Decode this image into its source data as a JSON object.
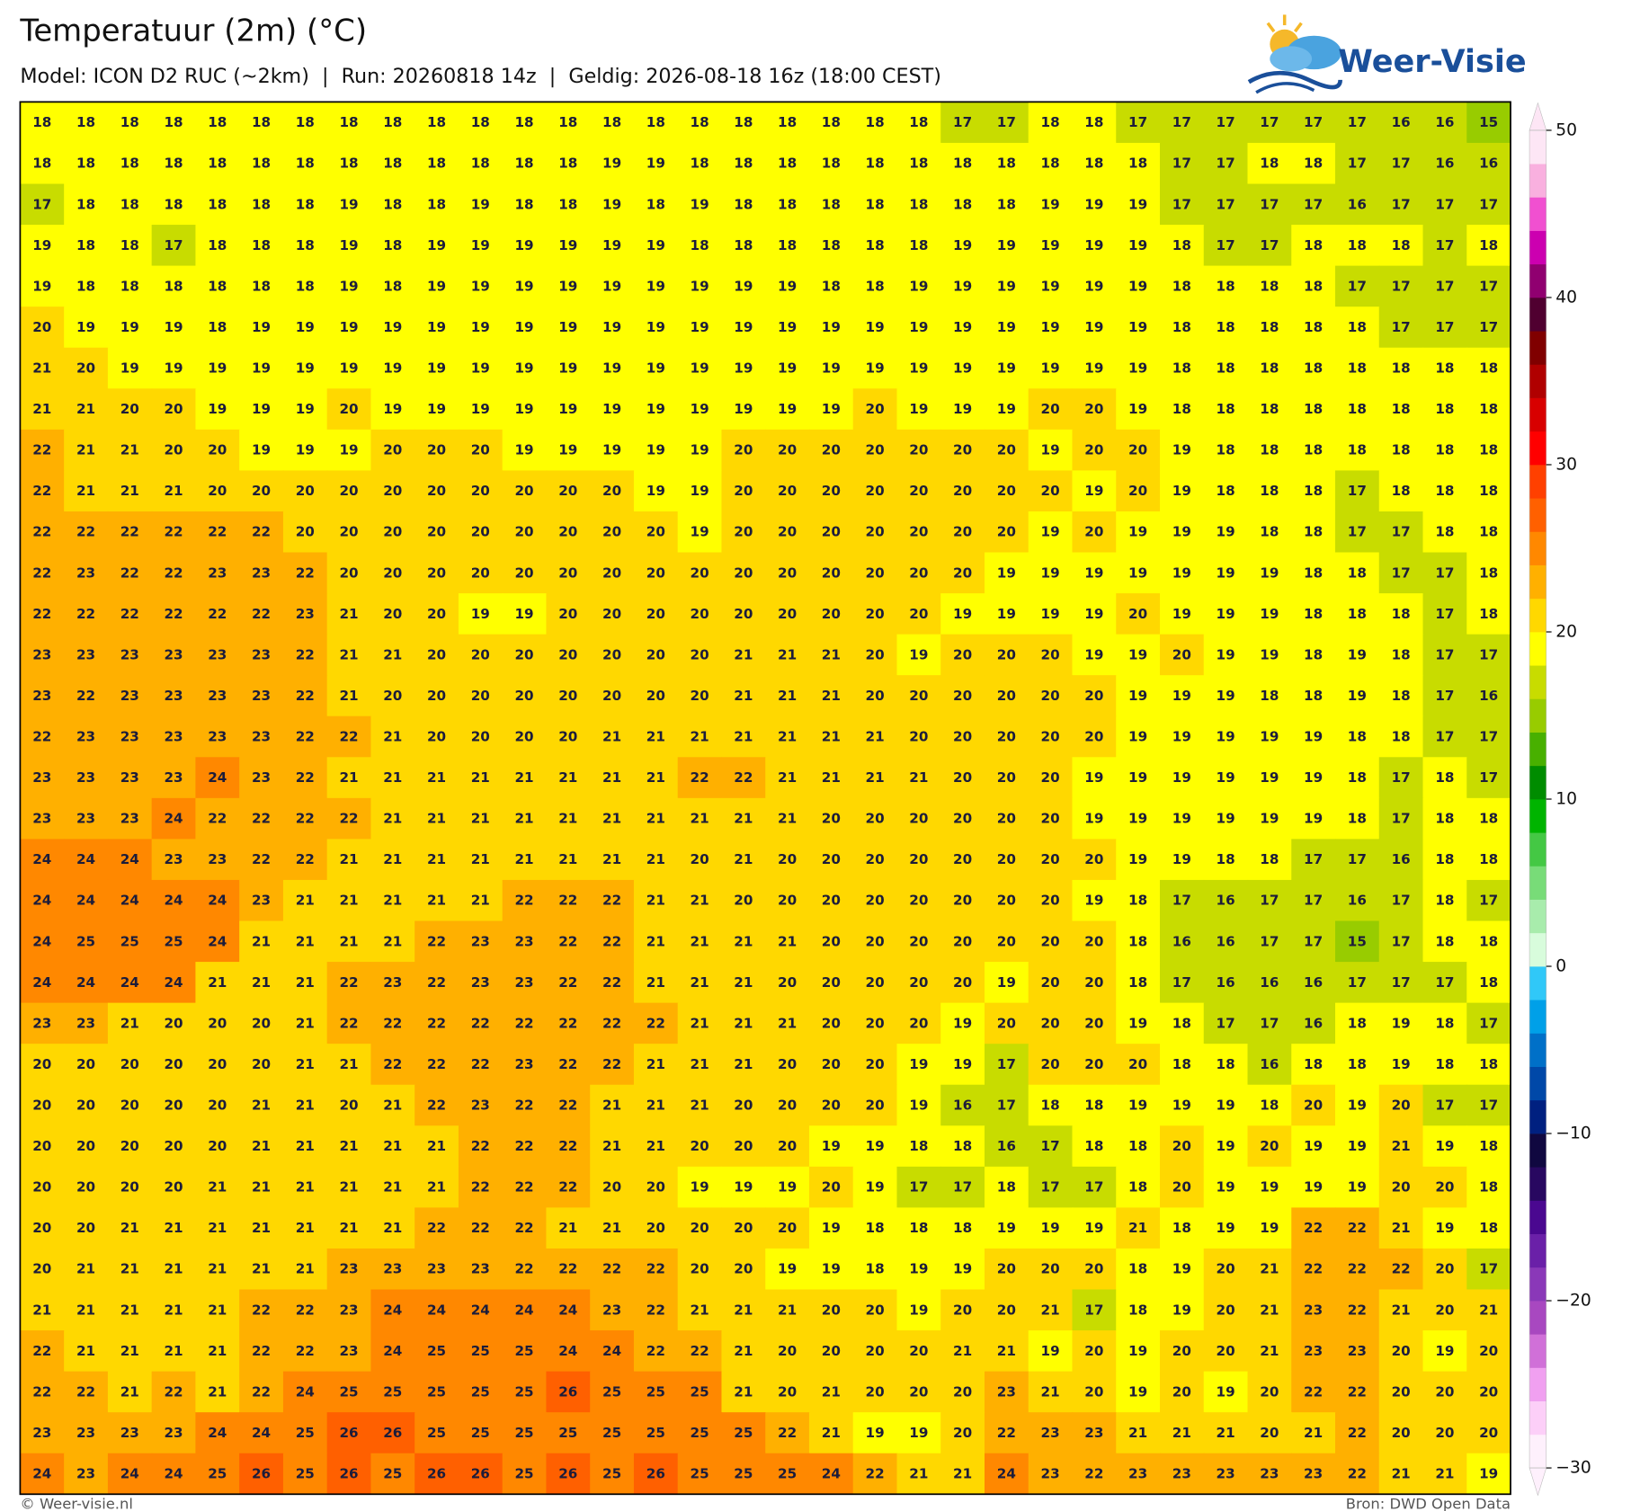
{
  "chart_data": {
    "type": "grid_map",
    "title": "Temperatuur (2m) (°C)",
    "subtitle": "Model: ICON D2 RUC (~2km)  |  Run: 20260818 14z  |  Geldig: 2026-08-18 16z (18:00 CEST)",
    "values": [
      [
        18,
        18,
        18,
        18,
        18,
        18,
        18,
        18,
        18,
        18,
        18,
        18,
        18,
        18,
        18,
        18,
        18,
        18,
        18,
        18,
        18,
        17,
        17,
        18,
        18,
        17,
        17,
        17,
        17,
        17,
        17,
        16,
        16,
        15
      ],
      [
        18,
        18,
        18,
        18,
        18,
        18,
        18,
        18,
        18,
        18,
        18,
        18,
        18,
        19,
        19,
        18,
        18,
        18,
        18,
        18,
        18,
        18,
        18,
        18,
        18,
        18,
        17,
        17,
        18,
        18,
        17,
        17,
        16,
        16
      ],
      [
        17,
        18,
        18,
        18,
        18,
        18,
        18,
        19,
        18,
        18,
        19,
        18,
        18,
        19,
        18,
        19,
        18,
        18,
        18,
        18,
        18,
        18,
        18,
        19,
        19,
        19,
        17,
        17,
        17,
        17,
        16,
        17,
        17,
        17
      ],
      [
        19,
        18,
        18,
        17,
        18,
        18,
        18,
        19,
        18,
        19,
        19,
        19,
        19,
        19,
        19,
        18,
        18,
        18,
        18,
        18,
        18,
        19,
        19,
        19,
        19,
        19,
        18,
        17,
        17,
        18,
        18,
        18,
        17,
        18
      ],
      [
        19,
        18,
        18,
        18,
        18,
        18,
        18,
        19,
        18,
        19,
        19,
        19,
        19,
        19,
        19,
        19,
        19,
        19,
        18,
        18,
        19,
        19,
        19,
        19,
        19,
        19,
        18,
        18,
        18,
        18,
        17,
        17,
        17,
        17
      ],
      [
        20,
        19,
        19,
        19,
        18,
        19,
        19,
        19,
        19,
        19,
        19,
        19,
        19,
        19,
        19,
        19,
        19,
        19,
        19,
        19,
        19,
        19,
        19,
        19,
        19,
        19,
        18,
        18,
        18,
        18,
        18,
        17,
        17,
        17
      ],
      [
        21,
        20,
        19,
        19,
        19,
        19,
        19,
        19,
        19,
        19,
        19,
        19,
        19,
        19,
        19,
        19,
        19,
        19,
        19,
        19,
        19,
        19,
        19,
        19,
        19,
        19,
        18,
        18,
        18,
        18,
        18,
        18,
        18,
        18
      ],
      [
        21,
        21,
        20,
        20,
        19,
        19,
        19,
        20,
        19,
        19,
        19,
        19,
        19,
        19,
        19,
        19,
        19,
        19,
        19,
        20,
        19,
        19,
        19,
        20,
        20,
        19,
        18,
        18,
        18,
        18,
        18,
        18,
        18,
        18
      ],
      [
        22,
        21,
        21,
        20,
        20,
        19,
        19,
        19,
        20,
        20,
        20,
        19,
        19,
        19,
        19,
        19,
        20,
        20,
        20,
        20,
        20,
        20,
        20,
        19,
        20,
        20,
        19,
        18,
        18,
        18,
        18,
        18,
        18,
        18
      ],
      [
        22,
        21,
        21,
        21,
        20,
        20,
        20,
        20,
        20,
        20,
        20,
        20,
        20,
        20,
        19,
        19,
        20,
        20,
        20,
        20,
        20,
        20,
        20,
        20,
        19,
        20,
        19,
        18,
        18,
        18,
        17,
        18,
        18,
        18
      ],
      [
        22,
        22,
        22,
        22,
        22,
        22,
        20,
        20,
        20,
        20,
        20,
        20,
        20,
        20,
        20,
        19,
        20,
        20,
        20,
        20,
        20,
        20,
        20,
        19,
        20,
        19,
        19,
        19,
        18,
        18,
        17,
        17,
        18,
        18
      ],
      [
        22,
        23,
        22,
        22,
        23,
        23,
        22,
        20,
        20,
        20,
        20,
        20,
        20,
        20,
        20,
        20,
        20,
        20,
        20,
        20,
        20,
        20,
        19,
        19,
        19,
        19,
        19,
        19,
        19,
        18,
        18,
        17,
        17,
        18
      ],
      [
        22,
        22,
        22,
        22,
        22,
        22,
        23,
        21,
        20,
        20,
        19,
        19,
        20,
        20,
        20,
        20,
        20,
        20,
        20,
        20,
        20,
        19,
        19,
        19,
        19,
        20,
        19,
        19,
        19,
        18,
        18,
        18,
        17,
        18
      ],
      [
        23,
        23,
        23,
        23,
        23,
        23,
        22,
        21,
        21,
        20,
        20,
        20,
        20,
        20,
        20,
        20,
        21,
        21,
        21,
        20,
        19,
        20,
        20,
        20,
        19,
        19,
        20,
        19,
        19,
        18,
        19,
        18,
        17,
        17
      ],
      [
        23,
        22,
        23,
        23,
        23,
        23,
        22,
        21,
        20,
        20,
        20,
        20,
        20,
        20,
        20,
        20,
        21,
        21,
        21,
        20,
        20,
        20,
        20,
        20,
        20,
        19,
        19,
        19,
        18,
        18,
        19,
        18,
        17,
        16
      ],
      [
        22,
        23,
        23,
        23,
        23,
        23,
        22,
        22,
        21,
        20,
        20,
        20,
        20,
        21,
        21,
        21,
        21,
        21,
        21,
        21,
        20,
        20,
        20,
        20,
        20,
        19,
        19,
        19,
        19,
        19,
        18,
        18,
        17,
        17
      ],
      [
        23,
        23,
        23,
        23,
        24,
        23,
        22,
        21,
        21,
        21,
        21,
        21,
        21,
        21,
        21,
        22,
        22,
        21,
        21,
        21,
        21,
        20,
        20,
        20,
        19,
        19,
        19,
        19,
        19,
        19,
        18,
        17,
        18,
        17
      ],
      [
        23,
        23,
        23,
        24,
        22,
        22,
        22,
        22,
        21,
        21,
        21,
        21,
        21,
        21,
        21,
        21,
        21,
        21,
        20,
        20,
        20,
        20,
        20,
        20,
        19,
        19,
        19,
        19,
        19,
        19,
        18,
        17,
        18,
        18
      ],
      [
        24,
        24,
        24,
        23,
        23,
        22,
        22,
        21,
        21,
        21,
        21,
        21,
        21,
        21,
        21,
        20,
        21,
        20,
        20,
        20,
        20,
        20,
        20,
        20,
        20,
        19,
        19,
        18,
        18,
        17,
        17,
        16,
        18,
        18
      ],
      [
        24,
        24,
        24,
        24,
        24,
        23,
        21,
        21,
        21,
        21,
        21,
        22,
        22,
        22,
        21,
        21,
        20,
        20,
        20,
        20,
        20,
        20,
        20,
        20,
        19,
        18,
        17,
        16,
        17,
        17,
        16,
        17,
        18,
        17
      ],
      [
        24,
        25,
        25,
        25,
        24,
        21,
        21,
        21,
        21,
        22,
        23,
        23,
        22,
        22,
        21,
        21,
        21,
        21,
        20,
        20,
        20,
        20,
        20,
        20,
        20,
        18,
        16,
        16,
        17,
        17,
        15,
        17,
        18,
        18
      ],
      [
        24,
        24,
        24,
        24,
        21,
        21,
        21,
        22,
        23,
        22,
        23,
        23,
        22,
        22,
        21,
        21,
        21,
        20,
        20,
        20,
        20,
        20,
        19,
        20,
        20,
        18,
        17,
        16,
        16,
        16,
        17,
        17,
        17,
        18
      ],
      [
        23,
        23,
        21,
        20,
        20,
        20,
        21,
        22,
        22,
        22,
        22,
        22,
        22,
        22,
        22,
        21,
        21,
        21,
        20,
        20,
        20,
        19,
        20,
        20,
        20,
        19,
        18,
        17,
        17,
        16,
        18,
        19,
        18,
        17
      ],
      [
        20,
        20,
        20,
        20,
        20,
        20,
        21,
        21,
        22,
        22,
        22,
        23,
        22,
        22,
        21,
        21,
        21,
        20,
        20,
        20,
        19,
        19,
        17,
        20,
        20,
        20,
        18,
        18,
        16,
        18,
        18,
        19,
        18,
        18
      ],
      [
        20,
        20,
        20,
        20,
        20,
        21,
        21,
        20,
        21,
        22,
        23,
        22,
        22,
        21,
        21,
        21,
        20,
        20,
        20,
        20,
        19,
        16,
        17,
        18,
        18,
        19,
        19,
        19,
        18,
        20,
        19,
        20,
        17,
        17
      ],
      [
        20,
        20,
        20,
        20,
        20,
        21,
        21,
        21,
        21,
        21,
        22,
        22,
        22,
        21,
        21,
        20,
        20,
        20,
        19,
        19,
        18,
        18,
        16,
        17,
        18,
        18,
        20,
        19,
        20,
        19,
        19,
        21,
        19,
        18
      ],
      [
        20,
        20,
        20,
        20,
        21,
        21,
        21,
        21,
        21,
        21,
        22,
        22,
        22,
        20,
        20,
        19,
        19,
        19,
        20,
        19,
        17,
        17,
        18,
        17,
        17,
        18,
        20,
        19,
        19,
        19,
        19,
        20,
        20,
        18
      ],
      [
        20,
        20,
        21,
        21,
        21,
        21,
        21,
        21,
        21,
        22,
        22,
        22,
        21,
        21,
        20,
        20,
        20,
        20,
        19,
        18,
        18,
        18,
        19,
        19,
        19,
        21,
        18,
        19,
        19,
        22,
        22,
        21,
        19,
        18
      ],
      [
        20,
        21,
        21,
        21,
        21,
        21,
        21,
        23,
        23,
        23,
        23,
        22,
        22,
        22,
        22,
        20,
        20,
        19,
        19,
        18,
        19,
        19,
        20,
        20,
        20,
        18,
        19,
        20,
        21,
        22,
        22,
        22,
        20,
        17
      ],
      [
        21,
        21,
        21,
        21,
        21,
        22,
        22,
        23,
        24,
        24,
        24,
        24,
        24,
        23,
        22,
        21,
        21,
        21,
        20,
        20,
        19,
        20,
        20,
        21,
        17,
        18,
        19,
        20,
        21,
        23,
        22,
        21,
        20,
        21
      ],
      [
        22,
        21,
        21,
        21,
        21,
        22,
        22,
        23,
        24,
        25,
        25,
        25,
        24,
        24,
        22,
        22,
        21,
        20,
        20,
        20,
        20,
        21,
        21,
        19,
        20,
        19,
        20,
        20,
        21,
        23,
        23,
        20,
        19,
        20
      ],
      [
        22,
        22,
        21,
        22,
        21,
        22,
        24,
        25,
        25,
        25,
        25,
        25,
        26,
        25,
        25,
        25,
        21,
        20,
        21,
        20,
        20,
        20,
        23,
        21,
        20,
        19,
        20,
        19,
        20,
        22,
        22,
        20,
        20,
        20
      ],
      [
        23,
        23,
        23,
        23,
        24,
        24,
        25,
        26,
        26,
        25,
        25,
        25,
        25,
        25,
        25,
        25,
        25,
        22,
        21,
        19,
        19,
        20,
        22,
        23,
        23,
        21,
        21,
        21,
        20,
        21,
        22,
        20,
        20,
        20
      ],
      [
        24,
        23,
        24,
        24,
        25,
        26,
        25,
        26,
        25,
        26,
        26,
        25,
        26,
        25,
        26,
        25,
        25,
        25,
        24,
        22,
        21,
        21,
        24,
        23,
        22,
        23,
        23,
        23,
        23,
        23,
        22,
        21,
        21,
        19
      ]
    ],
    "colorbar": {
      "vlim": [
        -30,
        50
      ],
      "ticks": [
        {
          "value": -30,
          "label": "−30"
        },
        {
          "value": -20,
          "label": "−20"
        },
        {
          "value": -10,
          "label": "−10"
        },
        0,
        10,
        20,
        30,
        40,
        50
      ],
      "colors": [
        "#fef0fc",
        "#fccff8",
        "#f0a0f0",
        "#d070d8",
        "#a848c0",
        "#8a38b8",
        "#6a20a8",
        "#4a0890",
        "#280860",
        "#100840",
        "#002080",
        "#0048a8",
        "#0070c8",
        "#00a0e8",
        "#30c8f8",
        "#d8fcdc",
        "#a8ecac",
        "#78dc78",
        "#44c844",
        "#00b400",
        "#008c00",
        "#48b000",
        "#98cc00",
        "#c8dc00",
        "#ffff00",
        "#ffd800",
        "#ffb000",
        "#ff8800",
        "#ff6000",
        "#ff4000",
        "#ff0000",
        "#d80000",
        "#b00000",
        "#800000",
        "#500030",
        "#900070",
        "#cc00b0",
        "#f050d0",
        "#f9b0df",
        "#fde6f5"
      ]
    }
  },
  "logo": "Weer-Visie",
  "credit": "© Weer-visie.nl",
  "source": "Bron: DWD Open Data"
}
